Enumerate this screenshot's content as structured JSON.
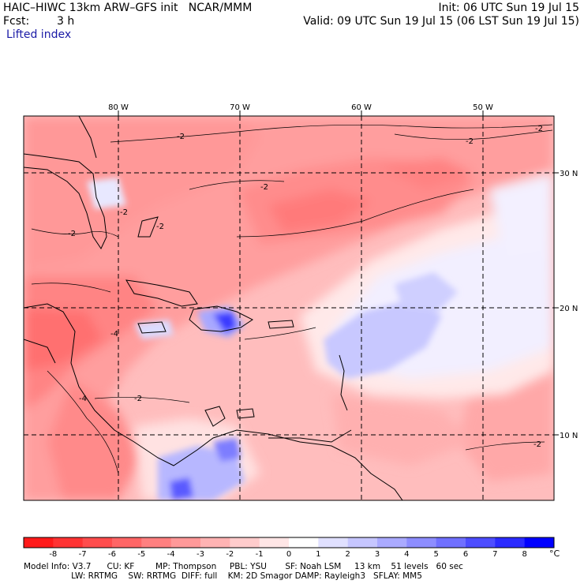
{
  "header": {
    "model_line": "HAIC–HIWC 13km ARW–GFS init   NCAR/MMM",
    "fcst_label": "Fcst:",
    "fcst_value": "3 h",
    "init_line": "Init: 06 UTC Sun 19 Jul 15",
    "valid_line": "Valid: 09 UTC Sun 19 Jul 15 (06 LST Sun 19 Jul 15)",
    "field_name": "Lifted index"
  },
  "map": {
    "longitude_labels": [
      "80 W",
      "70 W",
      "60 W",
      "50 W"
    ],
    "latitude_labels": [
      "30 N",
      "20 N",
      "10 N"
    ],
    "contour_labels": [
      "-2",
      "-2",
      "-2",
      "-2",
      "-2",
      "-2",
      "-2",
      "-2",
      "-4",
      "-4",
      "-2"
    ]
  },
  "colorbar": {
    "labels": [
      "-8",
      "-7",
      "-6",
      "-5",
      "-4",
      "-3",
      "-2",
      "-1",
      "0",
      "1",
      "2",
      "3",
      "4",
      "5",
      "6",
      "7",
      "8"
    ],
    "unit": "°C",
    "colors": [
      "#ff1a1a",
      "#ff3333",
      "#ff4d4d",
      "#ff6666",
      "#ff8080",
      "#ff9999",
      "#ffb3b3",
      "#ffcccc",
      "#ffe6e6",
      "#ffffff",
      "#e0e0ff",
      "#c6c6ff",
      "#aaaaff",
      "#8d8dff",
      "#7070ff",
      "#4d4dff",
      "#2a2aff",
      "#0000ff"
    ]
  },
  "footer": {
    "line1": "Model Info: V3.7      CU: KF        MP: Thompson     PBL: YSU       SF: Noah LSM     13 km    51 levels   60 sec",
    "line2": "                  LW: RRTMG    SW: RRTMG  DIFF: full    KM: 2D Smagor DAMP: Rayleigh3   SFLAY: MM5"
  }
}
